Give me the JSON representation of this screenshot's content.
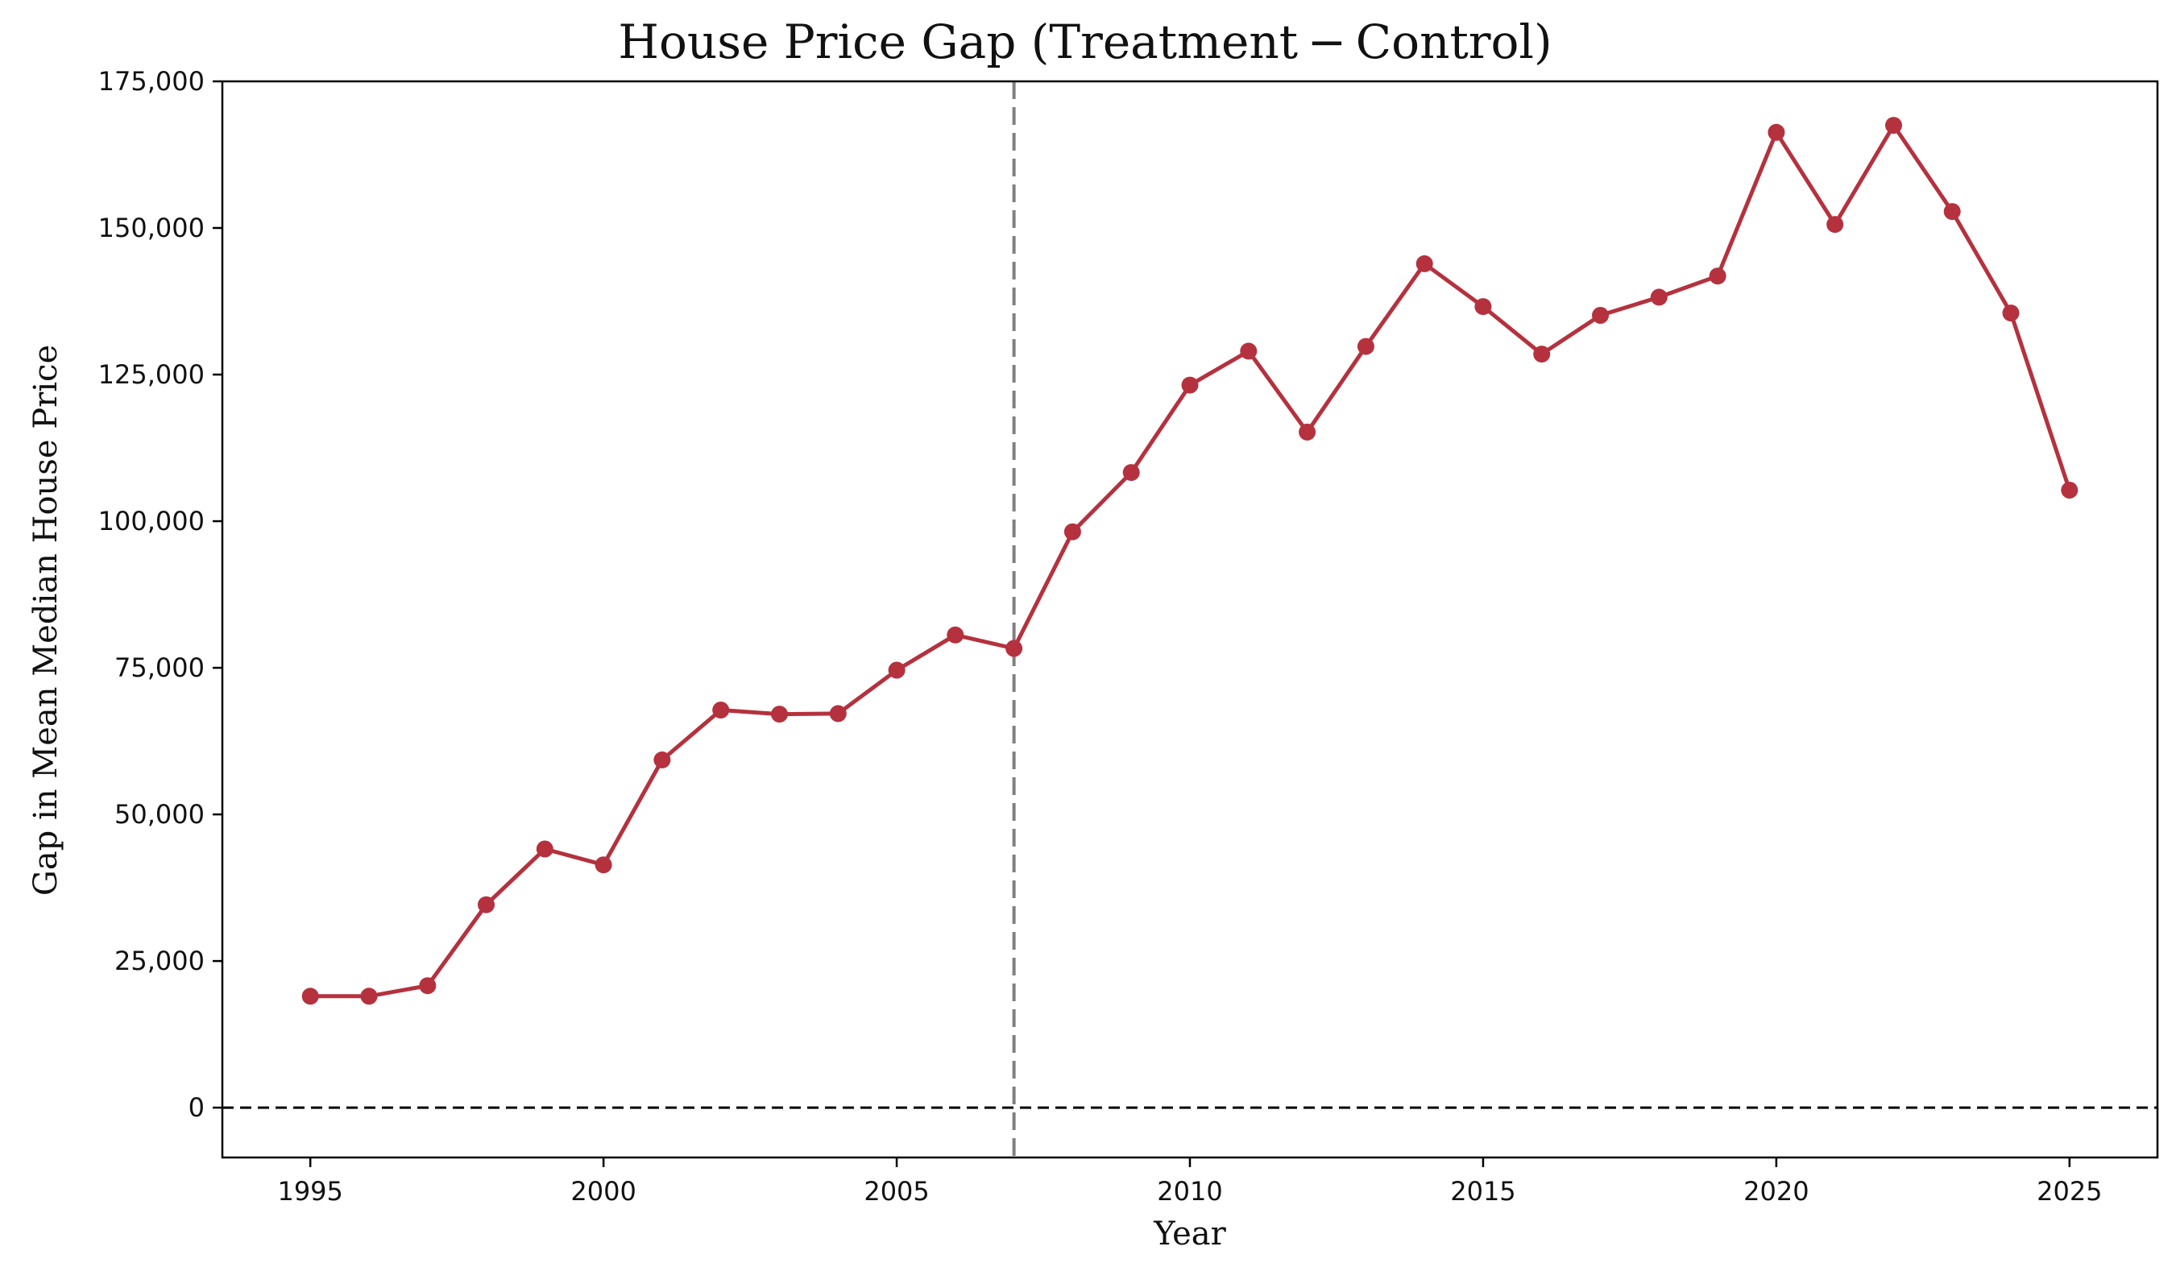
{
  "chart_data": {
    "type": "line",
    "title": "House Price Gap (Treatment − Control)",
    "xlabel": "Year",
    "ylabel": "Gap in Mean Median House Price",
    "xlim": [
      1993.5,
      2026.5
    ],
    "ylim": [
      -8500,
      175000
    ],
    "x_ticks": [
      1995,
      2000,
      2005,
      2010,
      2015,
      2020,
      2025
    ],
    "y_ticks": [
      0,
      25000,
      50000,
      75000,
      100000,
      125000,
      150000,
      175000
    ],
    "y_tick_labels": [
      "0",
      "25,000",
      "50,000",
      "75,000",
      "100,000",
      "125,000",
      "150,000",
      "175,000"
    ],
    "grid": false,
    "legend": "none",
    "reference_lines": {
      "zero_line": {
        "y": 0,
        "style": "dashed",
        "color": "#000000"
      },
      "treatment_line": {
        "x": 2007,
        "style": "dashed",
        "color": "#808080"
      }
    },
    "series": [
      {
        "color": "#b5313e",
        "x": [
          1995,
          1996,
          1997,
          1998,
          1999,
          2000,
          2001,
          2002,
          2003,
          2004,
          2005,
          2006,
          2007,
          2008,
          2009,
          2010,
          2011,
          2012,
          2013,
          2014,
          2015,
          2016,
          2017,
          2018,
          2019,
          2020,
          2021,
          2022,
          2023,
          2024,
          2025
        ],
        "values": [
          19000,
          19000,
          20800,
          34600,
          44100,
          41400,
          59300,
          67800,
          67100,
          67200,
          74600,
          80600,
          78300,
          98200,
          108300,
          123200,
          129000,
          115200,
          129800,
          143900,
          136600,
          128500,
          135100,
          138200,
          141800,
          166300,
          150600,
          167500,
          152800,
          135500,
          105300
        ]
      }
    ]
  }
}
